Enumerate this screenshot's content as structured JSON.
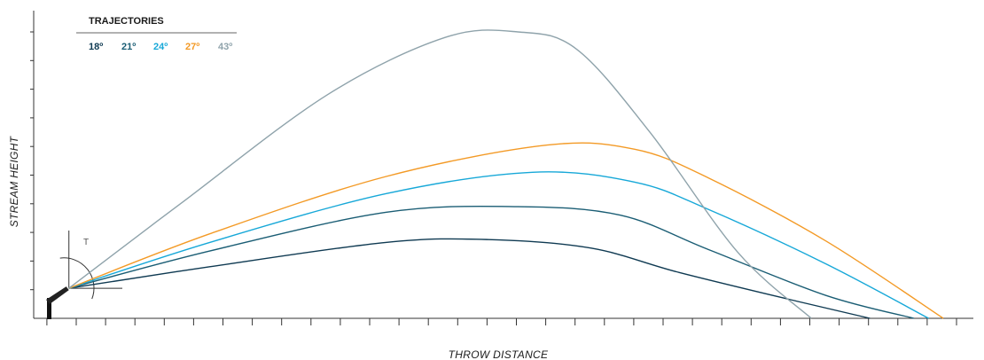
{
  "chart_data": {
    "type": "line",
    "title": "",
    "xlabel": "THROW DISTANCE",
    "ylabel": "STREAM HEIGHT",
    "legend": {
      "title": "TRAJECTORIES",
      "position": "top-left"
    },
    "annotation": "T",
    "xlim": [
      0,
      32
    ],
    "ylim": [
      0,
      10
    ],
    "grid": false,
    "series": [
      {
        "name": "18º",
        "color": "#0f3a52",
        "x": [
          1.2,
          6,
          12,
          15.5,
          19,
          22,
          26,
          28.5
        ],
        "y": [
          1.05,
          1.8,
          2.65,
          2.75,
          2.45,
          1.6,
          0.6,
          0
        ]
      },
      {
        "name": "21º",
        "color": "#1a5d74",
        "x": [
          1.2,
          6,
          12,
          16.5,
          20,
          23,
          27,
          30
        ],
        "y": [
          1.05,
          2.35,
          3.7,
          3.9,
          3.6,
          2.4,
          0.8,
          0
        ]
      },
      {
        "name": "24º",
        "color": "#17a8d8",
        "x": [
          1.2,
          6,
          12,
          17,
          20.5,
          23,
          27,
          30.5
        ],
        "y": [
          1.05,
          2.65,
          4.35,
          5.1,
          4.75,
          3.8,
          1.9,
          0
        ]
      },
      {
        "name": "27º",
        "color": "#f39a26",
        "x": [
          1.2,
          6,
          12,
          17.5,
          20.5,
          23,
          27,
          31
        ],
        "y": [
          1.05,
          2.95,
          4.95,
          6.05,
          5.9,
          4.9,
          2.7,
          0
        ]
      },
      {
        "name": "43º",
        "color": "#8fa3ab",
        "x": [
          1.2,
          5,
          10,
          14,
          16.5,
          18.5,
          21,
          24,
          26.5
        ],
        "y": [
          1.05,
          4.0,
          7.8,
          9.8,
          10.0,
          9.4,
          6.5,
          2.3,
          0
        ]
      }
    ]
  }
}
